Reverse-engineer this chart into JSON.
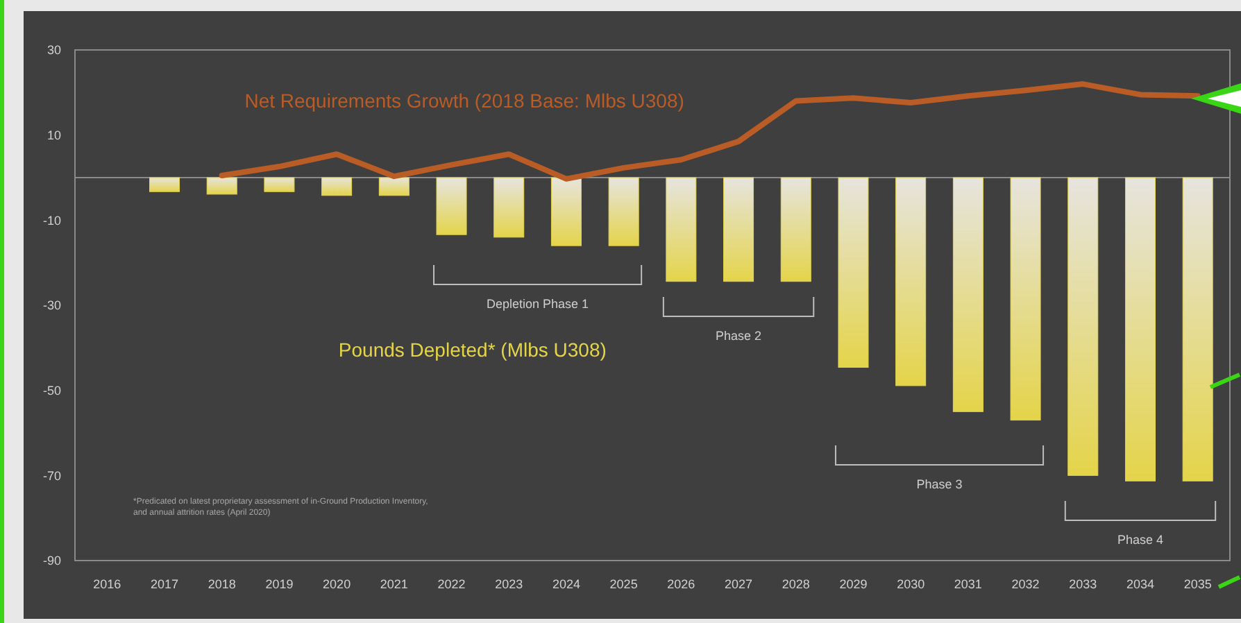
{
  "chart_data": {
    "type": "bar",
    "categories": [
      "2016",
      "2017",
      "2018",
      "2019",
      "2020",
      "2021",
      "2022",
      "2023",
      "2024",
      "2025",
      "2026",
      "2027",
      "2028",
      "2029",
      "2030",
      "2031",
      "2032",
      "2033",
      "2034",
      "2035"
    ],
    "series": [
      {
        "name": "Pounds Depleted* (Mlbs U308)",
        "color": "#e4d44a",
        "values": [
          null,
          -3.3,
          -3.9,
          -3.3,
          -4.2,
          -4.2,
          -13.4,
          -14,
          -16,
          -16,
          -24.4,
          -24.4,
          -24.4,
          -44.6,
          -48.9,
          -55,
          -57,
          -70,
          -71.3,
          -71.3
        ]
      },
      {
        "name": "Net Requirements Growth (2018 Base: Mlbs U308)",
        "type": "line",
        "color": "#b95c26",
        "values": [
          null,
          null,
          0.5,
          2.6,
          5.5,
          0.3,
          3,
          5.5,
          -0.3,
          2.3,
          4.2,
          8.5,
          18,
          18.7,
          17.6,
          19.2,
          20.5,
          22,
          19.5,
          19.2
        ]
      }
    ],
    "ylim": [
      -90,
      30
    ],
    "yticks": [
      -90,
      -70,
      -50,
      -30,
      -10,
      10,
      30
    ],
    "ref_lines": [
      {
        "axis": "y",
        "value": 0,
        "color": "#8a8a8a"
      }
    ],
    "grid": false,
    "annotations": [
      "Depletion Phase 1",
      "Phase 2",
      "Phase 3",
      "Phase 4",
      "*Predicated on latest proprietary assessment of in-Ground Production Inventory, and annual attrition rates (April 2020)"
    ]
  }
}
